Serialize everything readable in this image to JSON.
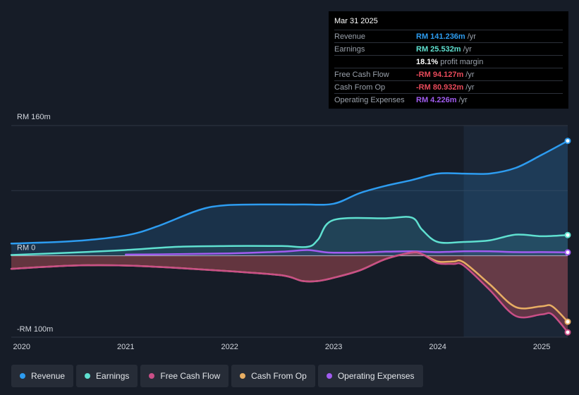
{
  "tooltip": {
    "date": "Mar 31 2025",
    "rows": [
      {
        "label": "Revenue",
        "value": "RM 141.236m",
        "unit": "/yr",
        "color": "#2d9cf0"
      },
      {
        "label": "Earnings",
        "value": "RM 25.532m",
        "unit": "/yr",
        "color": "#5fe0d0"
      },
      {
        "label": "",
        "value": "18.1%",
        "unit": "profit margin",
        "color": "#ffffff"
      },
      {
        "label": "Free Cash Flow",
        "value": "-RM 94.127m",
        "unit": "/yr",
        "color": "#e84a5a"
      },
      {
        "label": "Cash From Op",
        "value": "-RM 80.932m",
        "unit": "/yr",
        "color": "#e84a5a"
      },
      {
        "label": "Operating Expenses",
        "value": "RM 4.226m",
        "unit": "/yr",
        "color": "#a15cf0"
      }
    ]
  },
  "axis": {
    "y_top_label": "RM 160m",
    "y_zero_label": "RM 0",
    "y_bottom_label": "-RM 100m",
    "x_ticks": [
      "2020",
      "2021",
      "2022",
      "2023",
      "2024",
      "2025"
    ]
  },
  "legend": [
    {
      "label": "Revenue",
      "color": "#2d9cf0"
    },
    {
      "label": "Earnings",
      "color": "#5fe0d0"
    },
    {
      "label": "Free Cash Flow",
      "color": "#c94f87"
    },
    {
      "label": "Cash From Op",
      "color": "#e8ae63"
    },
    {
      "label": "Operating Expenses",
      "color": "#a15cf0"
    }
  ],
  "chart_data": {
    "type": "line",
    "ylim": [
      -100,
      160
    ],
    "xlim": [
      2019.9,
      2025.25
    ],
    "highlight_from": 2024.25,
    "series": [
      {
        "name": "Revenue",
        "color": "#2d9cf0",
        "x": [
          2019.9,
          2020.5,
          2021.0,
          2021.3,
          2021.7,
          2021.95,
          2022.3,
          2022.7,
          2023.0,
          2023.25,
          2023.5,
          2023.75,
          2024.0,
          2024.25,
          2024.5,
          2024.75,
          2025.0,
          2025.25
        ],
        "y": [
          15,
          18,
          25,
          36,
          56,
          62,
          63,
          63,
          64,
          77,
          86,
          93,
          101,
          101,
          101,
          108,
          124,
          141.2
        ]
      },
      {
        "name": "Earnings",
        "color": "#5fe0d0",
        "x": [
          2019.9,
          2020.5,
          2021.0,
          2021.5,
          2022.0,
          2022.5,
          2022.75,
          2022.85,
          2023.0,
          2023.5,
          2023.75,
          2023.85,
          2024.0,
          2024.25,
          2024.5,
          2024.75,
          2025.0,
          2025.25
        ],
        "y": [
          1,
          4,
          7,
          11,
          12,
          12,
          11,
          20,
          44,
          46,
          47,
          32,
          17,
          17,
          19,
          26,
          24,
          25.5
        ]
      },
      {
        "name": "Operating Expenses",
        "color": "#a15cf0",
        "x": [
          2021.0,
          2021.5,
          2022.0,
          2022.5,
          2022.75,
          2022.95,
          2023.25,
          2023.5,
          2023.75,
          2024.0,
          2024.25,
          2024.5,
          2024.75,
          2025.0,
          2025.25
        ],
        "y": [
          1.5,
          2,
          3,
          5,
          7,
          4,
          4,
          5,
          5.5,
          4.5,
          5.5,
          5.5,
          4.5,
          4.5,
          4.2
        ]
      },
      {
        "name": "Cash From Op",
        "color": "#e8ae63",
        "x": [
          2019.9,
          2020.5,
          2021.0,
          2021.5,
          2022.0,
          2022.5,
          2022.7,
          2022.85,
          2023.0,
          2023.25,
          2023.5,
          2023.75,
          2023.85,
          2024.0,
          2024.15,
          2024.25,
          2024.5,
          2024.75,
          2025.0,
          2025.1,
          2025.25
        ],
        "y": [
          -16,
          -12,
          -12,
          -15,
          -19,
          -24,
          -31,
          -31,
          -27,
          -18,
          -4,
          4,
          2,
          -7,
          -7,
          -8,
          -35,
          -63,
          -62,
          -62,
          -81
        ]
      },
      {
        "name": "Free Cash Flow",
        "color": "#c94f87",
        "x": [
          2019.9,
          2020.5,
          2021.0,
          2021.5,
          2022.0,
          2022.5,
          2022.7,
          2022.85,
          2023.0,
          2023.25,
          2023.5,
          2023.75,
          2023.85,
          2024.0,
          2024.15,
          2024.25,
          2024.5,
          2024.75,
          2025.0,
          2025.1,
          2025.25
        ],
        "y": [
          -16,
          -12,
          -12,
          -15,
          -19,
          -24,
          -31,
          -31,
          -27,
          -18,
          -4,
          4,
          2,
          -9,
          -10,
          -12,
          -42,
          -74,
          -72,
          -72,
          -94
        ]
      }
    ]
  }
}
